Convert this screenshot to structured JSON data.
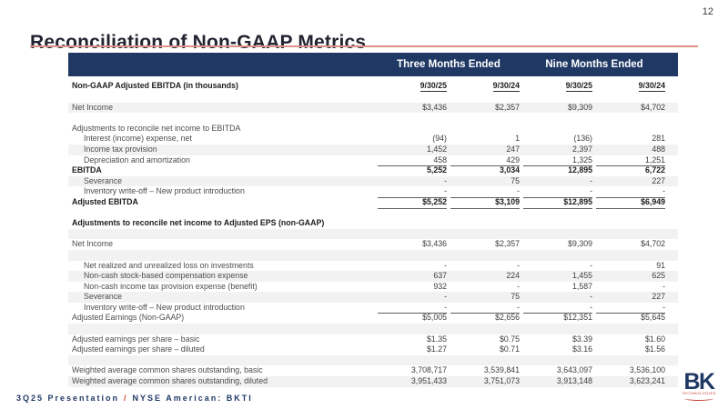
{
  "page_number": "12",
  "title": "Reconciliation of Non-GAAP Metrics",
  "table": {
    "group_headers": [
      "Three Months Ended",
      "Nine Months Ended"
    ],
    "header_row": {
      "label": "Non-GAAP Adjusted EBITDA (in thousands)",
      "cols": [
        "9/30/25",
        "9/30/24",
        "9/30/25",
        "9/30/24"
      ]
    },
    "rows": [
      {
        "blank": true
      },
      {
        "label": "Net Income",
        "values": [
          "$3,436",
          "$2,357",
          "$9,309",
          "$4,702"
        ],
        "shaded": true
      },
      {
        "blank": true
      },
      {
        "label": "Adjustments to reconcile net income to EBITDA",
        "values": [
          "",
          "",
          "",
          ""
        ]
      },
      {
        "label": "Interest (income) expense, net",
        "values": [
          "(94)",
          "1",
          "(136)",
          "281"
        ],
        "indent": true
      },
      {
        "label": "Income tax provision",
        "values": [
          "1,452",
          "247",
          "2,397",
          "488"
        ],
        "indent": true,
        "shaded": true
      },
      {
        "label": "Depreciation and amortization",
        "values": [
          "458",
          "429",
          "1,325",
          "1,251"
        ],
        "indent": true,
        "uline": true
      },
      {
        "label": "EBITDA",
        "values": [
          "5,252",
          "3,034",
          "12,895",
          "6,722"
        ],
        "bold": true
      },
      {
        "label": "Severance",
        "values": [
          "-",
          "75",
          "-",
          "227"
        ],
        "indent": true,
        "shaded": true
      },
      {
        "label": "Inventory write-off – New product introduction",
        "values": [
          "-",
          "-",
          "-",
          "-"
        ],
        "indent": true,
        "uline": true
      },
      {
        "label": "Adjusted EBITDA",
        "values": [
          "$5,252",
          "$3,109",
          "$12,895",
          "$6,949"
        ],
        "bold": true,
        "uline": true
      },
      {
        "blank": true
      },
      {
        "label": "Adjustments to reconcile net income to Adjusted EPS (non-GAAP)",
        "values": [
          "",
          "",
          "",
          ""
        ],
        "bold": true
      },
      {
        "blank": true,
        "shaded": true
      },
      {
        "label": "Net Income",
        "values": [
          "$3,436",
          "$2,357",
          "$9,309",
          "$4,702"
        ]
      },
      {
        "blank": true,
        "shaded": true
      },
      {
        "label": "Net realized and unrealized loss on investments",
        "values": [
          "-",
          "-",
          "-",
          "91"
        ],
        "indent": true
      },
      {
        "label": "Non-cash stock-based compensation expense",
        "values": [
          "637",
          "224",
          "1,455",
          "625"
        ],
        "indent": true,
        "shaded": true
      },
      {
        "label": "Non-cash income tax provision expense (benefit)",
        "values": [
          "932",
          "-",
          "1,587",
          "-"
        ],
        "indent": true
      },
      {
        "label": "Severance",
        "values": [
          "-",
          "75",
          "-",
          "227"
        ],
        "indent": true,
        "shaded": true
      },
      {
        "label": "Inventory write-off – New product introduction",
        "values": [
          "-",
          "-",
          "-",
          "-"
        ],
        "indent": true,
        "uline": true
      },
      {
        "label": "Adjusted Earnings (Non-GAAP)",
        "values": [
          "$5,005",
          "$2,656",
          "$12,351",
          "$5,645"
        ]
      },
      {
        "blank": true,
        "shaded": true
      },
      {
        "label": "Adjusted earnings per share – basic",
        "values": [
          "$1.35",
          "$0.75",
          "$3.39",
          "$1.60"
        ]
      },
      {
        "label": "Adjusted earnings per share – diluted",
        "values": [
          "$1.27",
          "$0.71",
          "$3.16",
          "$1.56"
        ]
      },
      {
        "blank": true,
        "shaded": true
      },
      {
        "label": "Weighted average common shares outstanding, basic",
        "values": [
          "3,708,717",
          "3,539,841",
          "3,643,097",
          "3,536,100"
        ]
      },
      {
        "label": "Weighted average common shares outstanding, diluted",
        "values": [
          "3,951,433",
          "3,751,073",
          "3,913,148",
          "3,623,241"
        ],
        "shaded": true
      }
    ]
  },
  "footer": {
    "presentation": "3Q25 Presentation",
    "divider": "/",
    "ticker": "NYSE American: BKTI"
  },
  "logo": {
    "text": "BK",
    "subtext": "TECHNOLOGIES"
  },
  "colors": {
    "header_navy": "#1F3864",
    "title_rule_salmon": "#DD9287",
    "accent_red": "#C23B2E",
    "stripe_gray": "#F2F2F3"
  }
}
